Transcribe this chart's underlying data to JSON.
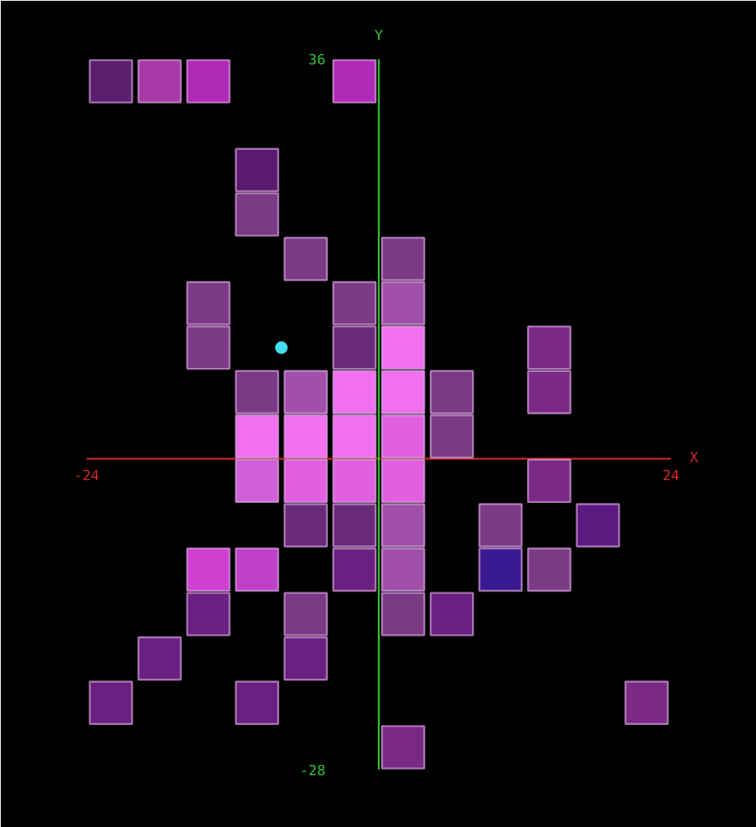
{
  "chart_data": {
    "type": "scatter",
    "xlabel": "X",
    "ylabel": "Y",
    "xlim": [
      -24,
      24
    ],
    "ylim": [
      -28,
      36
    ],
    "xticks": [
      -24,
      24
    ],
    "yticks": [
      -28,
      36
    ],
    "grid": false,
    "marker": "square",
    "ref_lines": [
      {
        "axis": "x",
        "value": 0,
        "color": "#30c030"
      }
    ],
    "series": [
      {
        "x": [
          -22,
          -18,
          -14,
          -2,
          -10,
          -10,
          -6,
          2,
          -14,
          -2,
          2,
          -14,
          -2,
          2,
          14,
          -10,
          -6,
          -2,
          2,
          6,
          14,
          -10,
          -6,
          -2,
          2,
          6,
          -10,
          -6,
          -2,
          2,
          14,
          -6,
          -2,
          2,
          10,
          18,
          -14,
          -10,
          -2,
          2,
          10,
          14,
          -14,
          -6,
          2,
          6,
          -18,
          -6,
          -22,
          -10,
          22,
          2
        ],
        "values": [
          34,
          34,
          34,
          34,
          26,
          22,
          18,
          18,
          14,
          14,
          14,
          10,
          10,
          10,
          10,
          6,
          6,
          6,
          6,
          6,
          6,
          2,
          2,
          2,
          2,
          2,
          -2,
          -2,
          -2,
          -2,
          -2,
          -6,
          -6,
          -6,
          -6,
          -6,
          -10,
          -10,
          -10,
          -10,
          -10,
          -10,
          -14,
          -14,
          -14,
          -14,
          -18,
          -18,
          -22,
          -22,
          -22,
          -26
        ],
        "colors": [
          "#5c1f70",
          "#a83aa8",
          "#b02ab8",
          "#b02ab8",
          "#5a1a6e",
          "#7a3a85",
          "#7a3a85",
          "#7a3a85",
          "#7a3a85",
          "#7a3a85",
          "#a050a8",
          "#7a3a85",
          "#6a2a7a",
          "#f070f0",
          "#7a2a85",
          "#7a3a85",
          "#a050a8",
          "#f070f0",
          "#f070f0",
          "#7a3a85",
          "#7a2a85",
          "#f070f0",
          "#f070f0",
          "#f070f0",
          "#e060e0",
          "#7a3a85",
          "#d060d8",
          "#e060e0",
          "#e060e0",
          "#e060e0",
          "#7a2a85",
          "#6a2a7a",
          "#6a2a7a",
          "#a050a8",
          "#7a3a85",
          "#5a1a80",
          "#d040d0",
          "#c040c8",
          "#6a2080",
          "#a050a8",
          "#3a1a90",
          "#7a3a85",
          "#6a2080",
          "#7a3a85",
          "#7a3a85",
          "#6a2080",
          "#6a2080",
          "#6a2080",
          "#6a2080",
          "#6a2080",
          "#7a2a85",
          "#7a2a85"
        ]
      },
      {
        "x": [
          -8
        ],
        "values": [
          10
        ],
        "color": "#40e0f0",
        "marker": "circle"
      }
    ]
  }
}
